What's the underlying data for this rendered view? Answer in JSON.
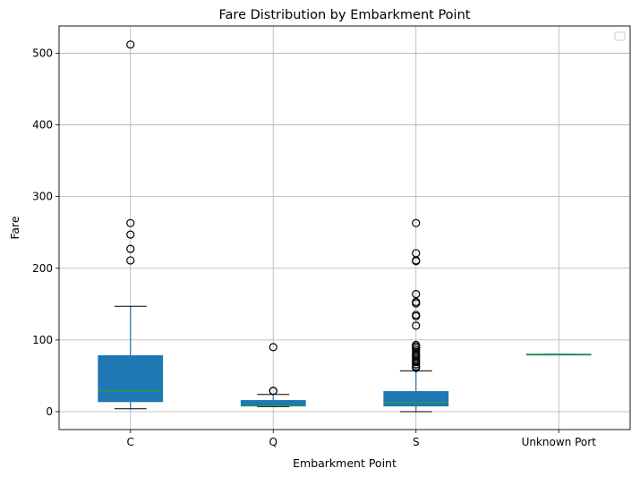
{
  "chart_data": {
    "type": "box",
    "title": "Fare Distribution by Embarkment Point",
    "xlabel": "Embarkment Point",
    "ylabel": "Fare",
    "categories": [
      "C",
      "Q",
      "S",
      "Unknown Port"
    ],
    "ylim": [
      -25,
      538
    ],
    "yticks": [
      0,
      100,
      200,
      300,
      400,
      500
    ],
    "grid": true,
    "legend": "top-right (empty)",
    "colors": {
      "box": "#1f77b4",
      "median": "#2ca02c",
      "whisker": "#1f77b4",
      "cap": "#000000",
      "flier": "#000000",
      "grid": "#b0b0b0"
    },
    "boxes": [
      {
        "category": "C",
        "whisker_low": 4,
        "q1": 14,
        "median": 29,
        "q3": 78,
        "whisker_high": 147,
        "fliers": [
          512,
          263,
          247,
          227,
          211
        ]
      },
      {
        "category": "Q",
        "whisker_low": 7,
        "q1": 8,
        "median": 8,
        "q3": 15.5,
        "whisker_high": 24,
        "fliers": [
          90,
          29,
          29
        ]
      },
      {
        "category": "S",
        "whisker_low": 0,
        "q1": 8,
        "median": 13,
        "q3": 28,
        "whisker_high": 57,
        "fliers": [
          263,
          221,
          211,
          210,
          164,
          153,
          151,
          135,
          133,
          120,
          93,
          91,
          89,
          86,
          83,
          80,
          78,
          76,
          73,
          71,
          69,
          66,
          63,
          61
        ]
      },
      {
        "category": "Unknown Port",
        "whisker_low": 80,
        "q1": 80,
        "median": 80,
        "q3": 80,
        "whisker_high": 80,
        "fliers": []
      }
    ]
  }
}
